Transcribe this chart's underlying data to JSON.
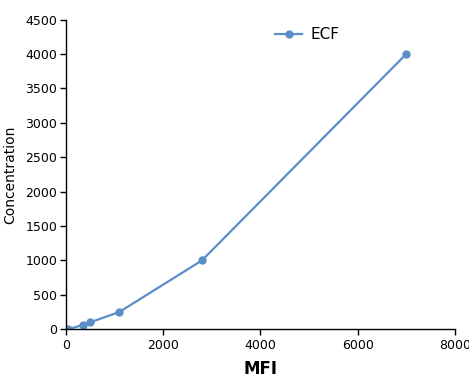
{
  "x": [
    50,
    350,
    500,
    1100,
    2800,
    7000
  ],
  "y": [
    0,
    62,
    100,
    250,
    1000,
    4000
  ],
  "line_color": "#5b8dc8",
  "marker": "o",
  "marker_size": 5,
  "legend_label": "ECF",
  "xlabel": "MFI",
  "ylabel": "Concentration",
  "xlim": [
    0,
    8000
  ],
  "ylim": [
    0,
    4500
  ],
  "xticks": [
    0,
    2000,
    4000,
    6000,
    8000
  ],
  "yticks": [
    0,
    500,
    1000,
    1500,
    2000,
    2500,
    3000,
    3500,
    4000,
    4500
  ],
  "xlabel_fontsize": 12,
  "ylabel_fontsize": 10,
  "tick_fontsize": 9,
  "legend_fontsize": 11,
  "background_color": "#ffffff"
}
